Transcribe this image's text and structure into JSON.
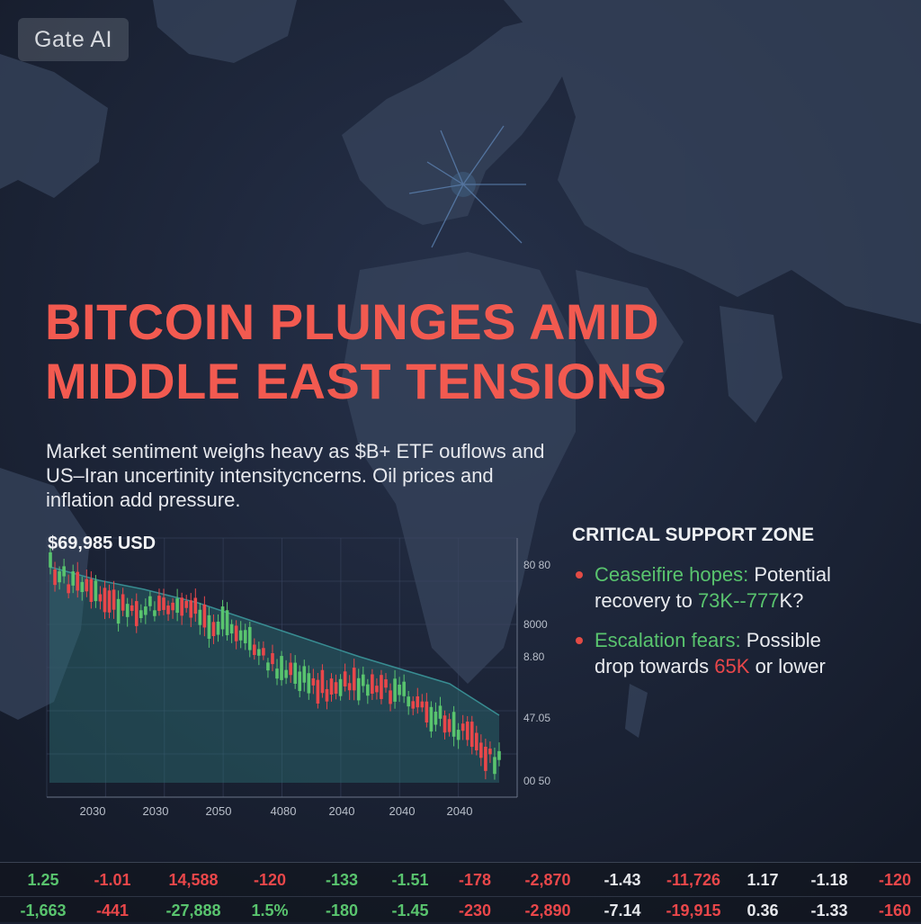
{
  "badge": {
    "label": "Gate AI"
  },
  "headline": {
    "line1": "BITCOIN PLUNGES AMID",
    "line2": "MIDDLE EAST TENSIONS"
  },
  "subtitle": {
    "line1": "Market sentiment weighs heavy as $B+ ETF ouflows and",
    "line2": "US–Iran uncertinity intensitycncerns. Oil prices and",
    "line3": "inflation add pressure."
  },
  "price_label": "$69,985 USD",
  "colors": {
    "headline": "#f25a50",
    "up": "#59c46e",
    "down": "#e9474a",
    "neutral": "#e6e8ec"
  },
  "chart_data": {
    "type": "candlestick",
    "title": "$69,985 USD",
    "x_tick_labels": [
      "2030",
      "2030",
      "2050",
      "4080",
      "2040",
      "2040",
      "2040"
    ],
    "y_tick_labels": [
      "80 80",
      "8000",
      "8.80",
      "47.05",
      "00 50"
    ],
    "trend": "downward",
    "shaded_band": true,
    "grid": true
  },
  "support": {
    "title": "CRITICAL SUPPORT ZONE",
    "items": [
      {
        "label": "Ceaseifire hopes:",
        "text_a": " Potential",
        "text_b": "recovery to ",
        "highlight": "73K--777",
        "text_c": "K?"
      },
      {
        "label": "Escalation fears:",
        "text_a": " Possible",
        "text_b": "drop towards ",
        "highlight": "65K",
        "text_c": " or lower"
      }
    ]
  },
  "ticker": {
    "row1": [
      {
        "value": "1.25",
        "dir": "up"
      },
      {
        "value": "-1.01",
        "dir": "down"
      },
      {
        "value": "14,588",
        "dir": "down"
      },
      {
        "value": "-120",
        "dir": "down"
      },
      {
        "value": "-133",
        "dir": "up"
      },
      {
        "value": "-1.51",
        "dir": "up"
      },
      {
        "value": "-178",
        "dir": "down"
      },
      {
        "value": "-2,870",
        "dir": "down"
      },
      {
        "value": "-1.43",
        "dir": "neutral"
      },
      {
        "value": "-11,726",
        "dir": "down"
      },
      {
        "value": "1.17",
        "dir": "neutral"
      },
      {
        "value": "-1.18",
        "dir": "neutral"
      },
      {
        "value": "-120",
        "dir": "down"
      }
    ],
    "row2": [
      {
        "value": "-1,663",
        "dir": "up"
      },
      {
        "value": "-441",
        "dir": "down"
      },
      {
        "value": "-27,888",
        "dir": "up"
      },
      {
        "value": "1.5%",
        "dir": "up"
      },
      {
        "value": "-180",
        "dir": "up"
      },
      {
        "value": "-1.45",
        "dir": "up"
      },
      {
        "value": "-230",
        "dir": "down"
      },
      {
        "value": "-2,890",
        "dir": "down"
      },
      {
        "value": "-7.14",
        "dir": "neutral"
      },
      {
        "value": "-19,915",
        "dir": "down"
      },
      {
        "value": "0.36",
        "dir": "neutral"
      },
      {
        "value": "-1.33",
        "dir": "neutral"
      },
      {
        "value": "-160",
        "dir": "down"
      }
    ]
  }
}
